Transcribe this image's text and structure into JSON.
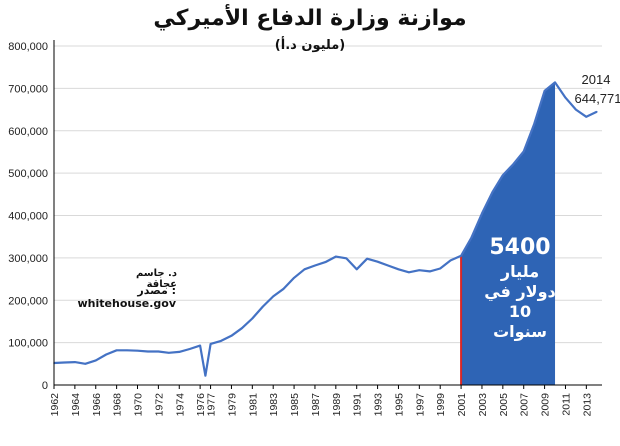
{
  "title": "موازنة وزارة الدفاع الأميركي",
  "subtitle": "(مليون د.أ)",
  "author": "د. جاسم عجاقة",
  "source": "مصدر : whitehouse.gov",
  "annotation": {
    "year": "2014",
    "value": "644,771"
  },
  "callout": {
    "amount": "5400",
    "line2": "مليار",
    "line3": "دولار في",
    "line4": "10",
    "line5": "سنوات"
  },
  "colors": {
    "line": "#4472c4",
    "fill": "#2e64b5",
    "marker": "#d62728",
    "axis": "#000000"
  },
  "chart_data": {
    "type": "area",
    "title": "موازنة وزارة الدفاع الأميركي",
    "subtitle": "(مليون د.أ)",
    "xlabel": "",
    "ylabel": "",
    "ylim": [
      0,
      800000
    ],
    "yticks": [
      0,
      100000,
      200000,
      300000,
      400000,
      500000,
      600000,
      700000,
      800000
    ],
    "ytick_labels": [
      "0",
      "100,000",
      "200,000",
      "300,000",
      "400,000",
      "500,000",
      "600,000",
      "700,000",
      "800,000"
    ],
    "xticks": [
      "1962",
      "1964",
      "1966",
      "1968",
      "1970",
      "1972",
      "1974",
      "1976",
      "1977",
      "1979",
      "1981",
      "1983",
      "1985",
      "1987",
      "1989",
      "1991",
      "1993",
      "1995",
      "1997",
      "1999",
      "2001",
      "2003",
      "2005",
      "2007",
      "2009",
      "2011",
      "2013"
    ],
    "x": [
      "1962",
      "1963",
      "1964",
      "1965",
      "1966",
      "1967",
      "1968",
      "1969",
      "1970",
      "1971",
      "1972",
      "1973",
      "1974",
      "1975",
      "1976",
      "1976.5",
      "1977",
      "1978",
      "1979",
      "1980",
      "1981",
      "1982",
      "1983",
      "1984",
      "1985",
      "1986",
      "1987",
      "1988",
      "1989",
      "1990",
      "1991",
      "1992",
      "1993",
      "1994",
      "1995",
      "1996",
      "1997",
      "1998",
      "1999",
      "2000",
      "2001",
      "2002",
      "2003",
      "2004",
      "2005",
      "2006",
      "2007",
      "2008",
      "2009",
      "2010",
      "2011",
      "2012",
      "2013",
      "2014"
    ],
    "series": [
      {
        "values": [
          52000,
          53000,
          54000,
          50000,
          58000,
          72000,
          82000,
          82000,
          81000,
          79000,
          79000,
          76000,
          78000,
          85000,
          93000,
          22000,
          97000,
          104000,
          116000,
          134000,
          157000,
          185000,
          209000,
          227000,
          253000,
          273000,
          282000,
          290000,
          303000,
          299000,
          273000,
          298000,
          291000,
          282000,
          273000,
          266000,
          271000,
          268000,
          275000,
          294000,
          305000,
          348000,
          405000,
          455000,
          495000,
          521000,
          551000,
          616000,
          694000,
          714000,
          678000,
          650000,
          633000,
          644771
        ]
      }
    ],
    "shaded_range": [
      "2001",
      "2010"
    ],
    "shaded_total": "5400"
  }
}
